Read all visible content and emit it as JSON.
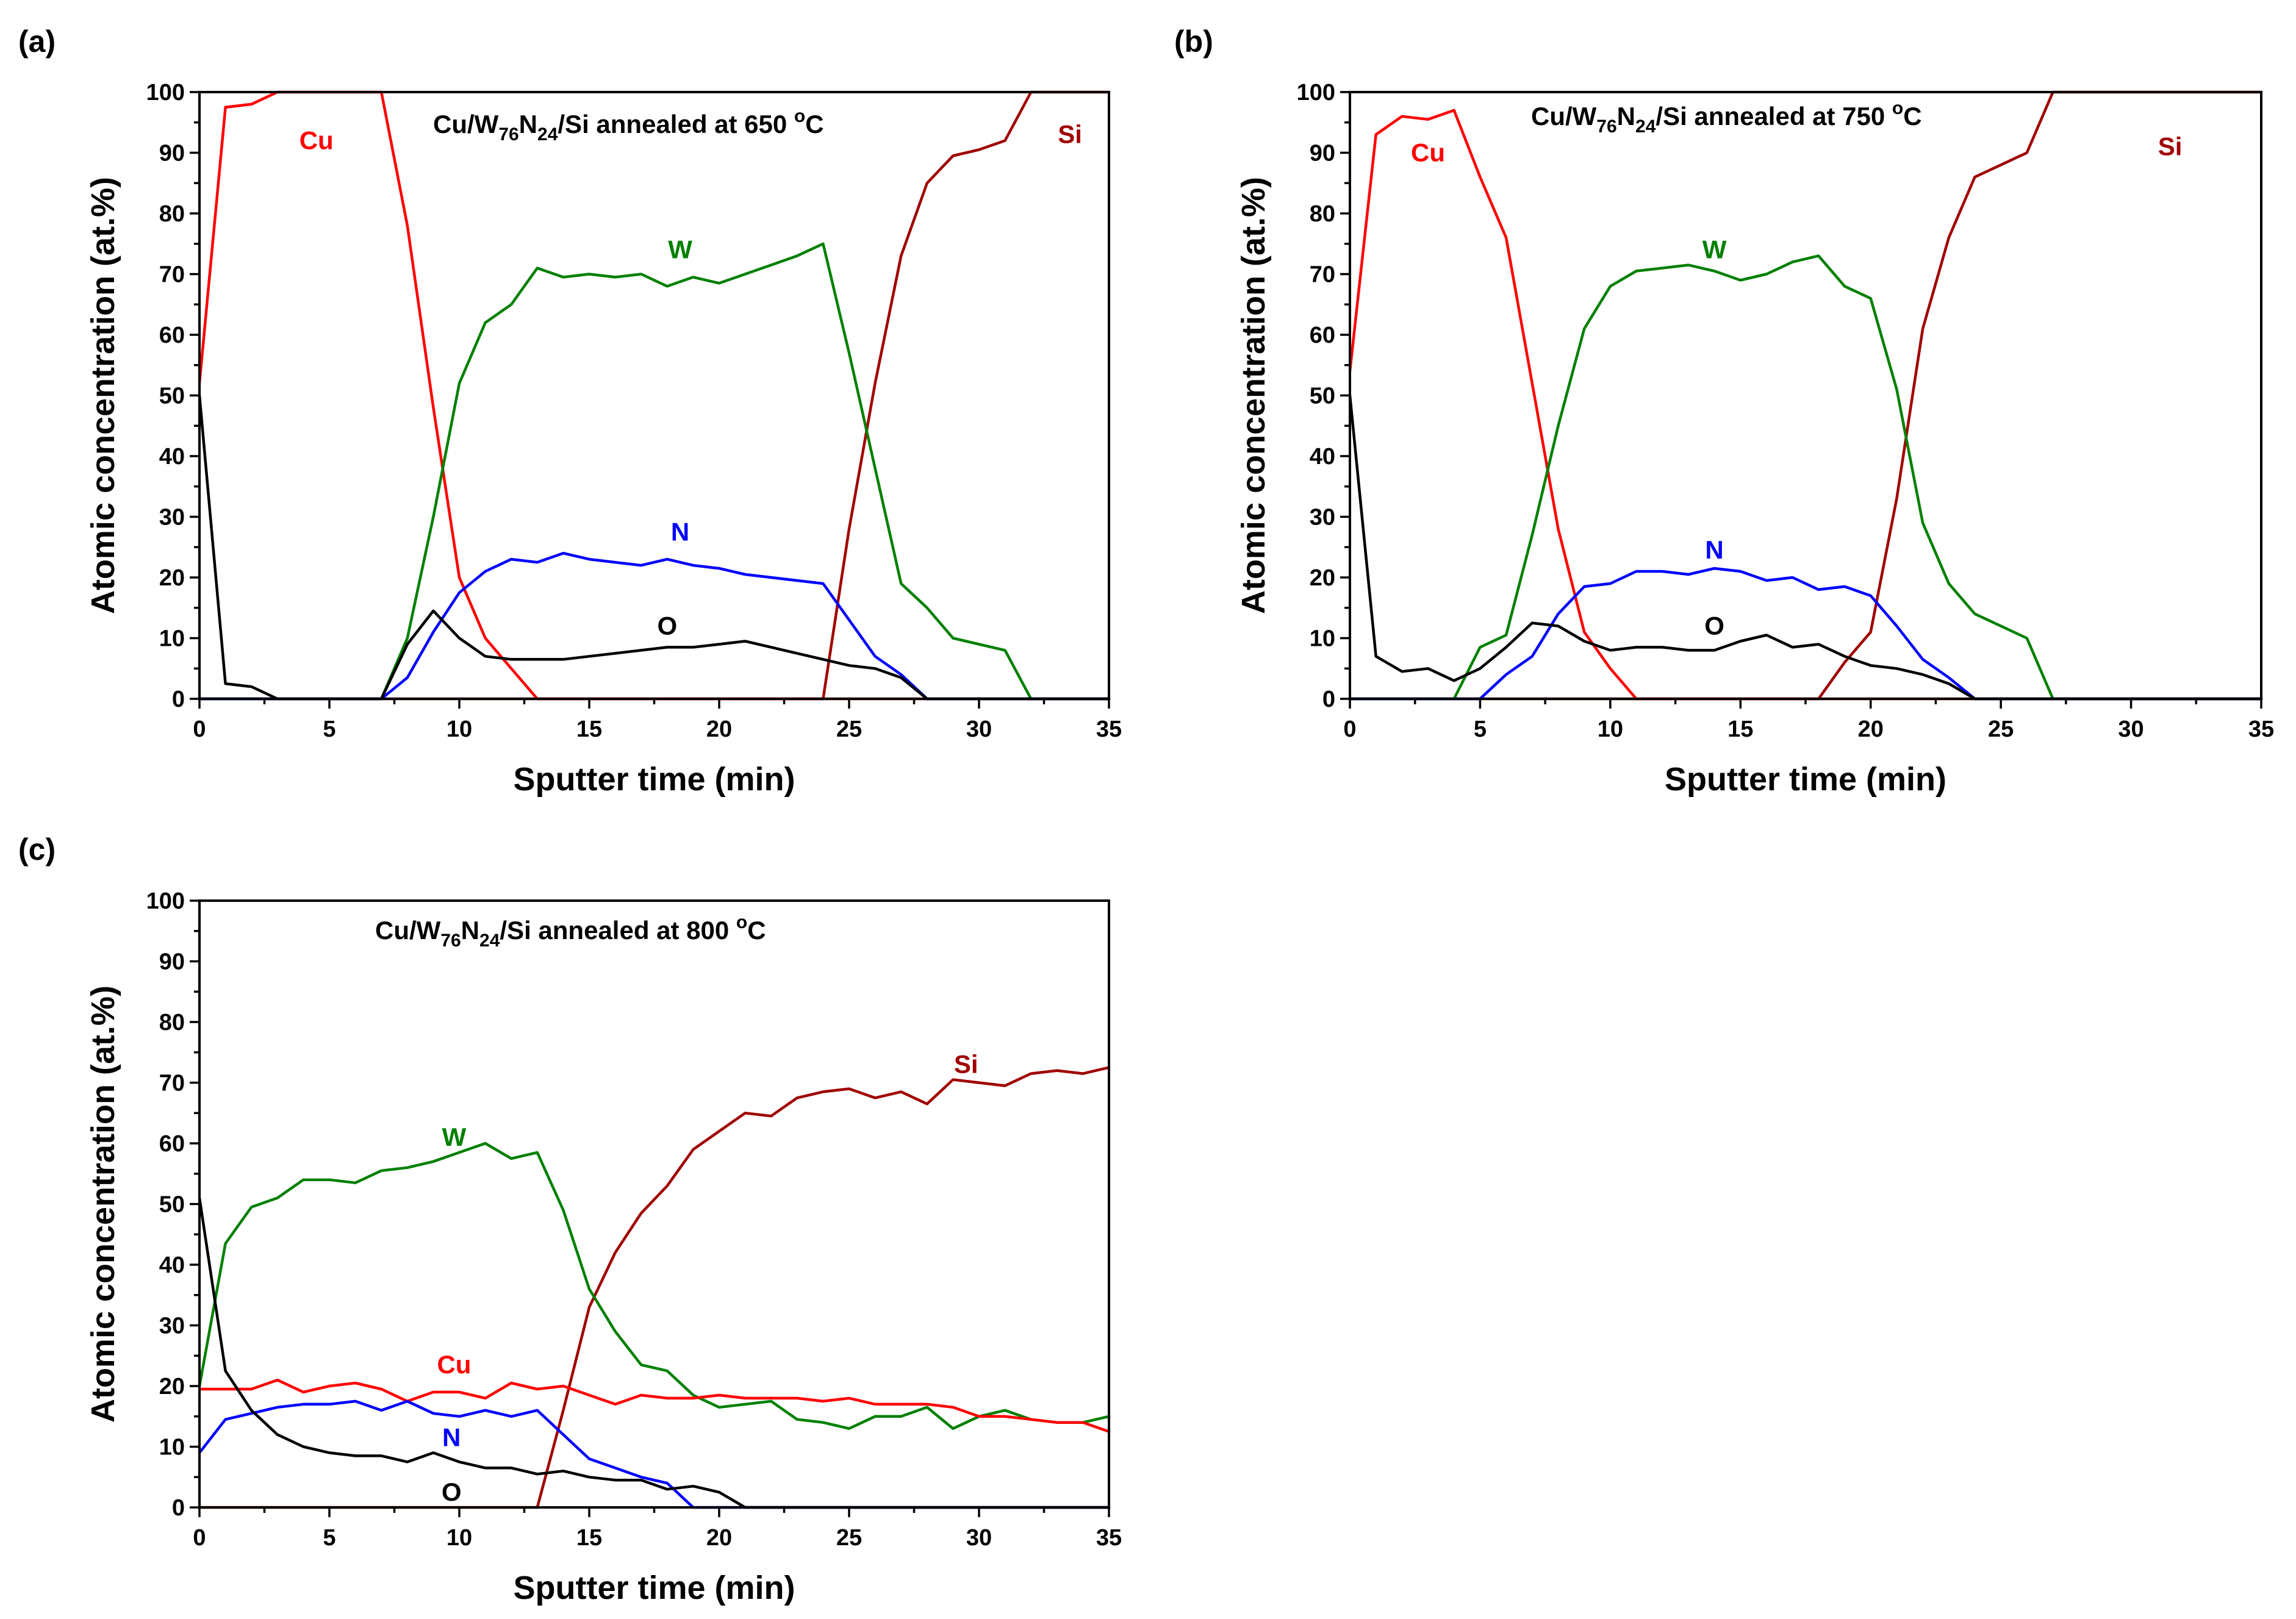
{
  "chart_data": [
    {
      "type": "line",
      "panel_label": "(a)",
      "title": {
        "prefix": "Cu/W",
        "sub1": "76",
        "mid": "N",
        "sub2": "24",
        "suffix": "/Si annealed at 650 ",
        "sup": "o",
        "unit": "C"
      },
      "xlabel": "Sputter time (min)",
      "ylabel": "Atomic concentration (at.%)",
      "xlim": [
        0,
        35
      ],
      "ylim": [
        0,
        100
      ],
      "xticks": [
        "0",
        "5",
        "10",
        "15",
        "20",
        "25",
        "30",
        "35"
      ],
      "yticks": [
        "0",
        "10",
        "20",
        "30",
        "40",
        "50",
        "60",
        "70",
        "80",
        "90",
        "100"
      ],
      "series": [
        {
          "name": "Cu",
          "color": "#ff0000",
          "label_at": [
            4.5,
            92
          ],
          "x": [
            0,
            1,
            2,
            3,
            4,
            5,
            6,
            7,
            8,
            9,
            10,
            11,
            12,
            13,
            14,
            35
          ],
          "y": [
            52,
            97.5,
            98,
            100,
            100,
            100,
            100,
            100,
            78,
            48,
            20,
            10,
            5,
            0,
            0,
            0
          ]
        },
        {
          "name": "Si",
          "color": "#a00000",
          "label_at": [
            33.5,
            93
          ],
          "x": [
            0,
            24,
            25,
            26,
            27,
            28,
            29,
            30,
            31,
            32,
            33,
            35
          ],
          "y": [
            0,
            0,
            28,
            52,
            73,
            85,
            89.5,
            90.5,
            92,
            100,
            100,
            100
          ]
        },
        {
          "name": "W",
          "color": "#008000",
          "label_at": [
            18.5,
            74
          ],
          "x": [
            0,
            7,
            8,
            9,
            10,
            11,
            12,
            13,
            14,
            15,
            16,
            17,
            18,
            19,
            20,
            21,
            22,
            23,
            24,
            25,
            26,
            27,
            28,
            29,
            30,
            31,
            32,
            35
          ],
          "y": [
            0,
            0,
            10,
            30,
            52,
            62,
            65,
            71,
            69.5,
            70,
            69.5,
            70,
            68,
            69.5,
            68.5,
            70,
            71.5,
            73,
            75,
            57,
            38,
            19,
            15,
            10,
            9,
            8,
            0,
            0
          ]
        },
        {
          "name": "N",
          "color": "#0000ff",
          "label_at": [
            18.5,
            27.5
          ],
          "x": [
            0,
            7,
            8,
            9,
            10,
            11,
            12,
            13,
            14,
            15,
            16,
            17,
            18,
            19,
            20,
            21,
            22,
            23,
            24,
            25,
            26,
            27,
            28,
            35
          ],
          "y": [
            0,
            0,
            3.5,
            11,
            17.5,
            21,
            23,
            22.5,
            24,
            23,
            22.5,
            22,
            23,
            22,
            21.5,
            20.5,
            20,
            19.5,
            19,
            13,
            7,
            4,
            0,
            0
          ]
        },
        {
          "name": "O",
          "color": "#000000",
          "label_at": [
            18,
            12
          ],
          "x": [
            0,
            1,
            2,
            3,
            4,
            5,
            6,
            7,
            8,
            9,
            10,
            11,
            12,
            13,
            14,
            15,
            16,
            17,
            18,
            19,
            20,
            21,
            22,
            23,
            24,
            25,
            26,
            27,
            28,
            35
          ],
          "y": [
            50,
            2.5,
            2,
            0,
            0,
            0,
            0,
            0,
            9,
            14.5,
            10,
            7,
            6.5,
            6.5,
            6.5,
            7,
            7.5,
            8,
            8.5,
            8.5,
            9,
            9.5,
            8.5,
            7.5,
            6.5,
            5.5,
            5,
            3.5,
            0,
            0
          ]
        }
      ]
    },
    {
      "type": "line",
      "panel_label": "(b)",
      "title": {
        "prefix": "Cu/W",
        "sub1": "76",
        "mid": "N",
        "sub2": "24",
        "suffix": "/Si annealed at 750 ",
        "sup": "o",
        "unit": "C"
      },
      "xlabel": "Sputter time (min)",
      "ylabel": "Atomic concentration (at.%)",
      "xlim": [
        0,
        35
      ],
      "ylim": [
        0,
        100
      ],
      "xticks": [
        "0",
        "5",
        "10",
        "15",
        "20",
        "25",
        "30",
        "35"
      ],
      "yticks": [
        "0",
        "10",
        "20",
        "30",
        "40",
        "50",
        "60",
        "70",
        "80",
        "90",
        "100"
      ],
      "series": [
        {
          "name": "Cu",
          "color": "#ff0000",
          "label_at": [
            3,
            90
          ],
          "x": [
            0,
            1,
            2,
            3,
            4,
            5,
            6,
            7,
            8,
            9,
            10,
            11,
            35
          ],
          "y": [
            54,
            93,
            96,
            95.5,
            97,
            86,
            76,
            52,
            28,
            11,
            5,
            0,
            0
          ]
        },
        {
          "name": "Si",
          "color": "#a00000",
          "label_at": [
            31.5,
            91
          ],
          "x": [
            0,
            18,
            19,
            20,
            21,
            22,
            23,
            24,
            25,
            26,
            27,
            28,
            35
          ],
          "y": [
            0,
            0,
            6,
            11,
            33,
            61,
            76,
            86,
            88,
            90,
            100,
            100,
            100
          ]
        },
        {
          "name": "W",
          "color": "#008000",
          "label_at": [
            14,
            74
          ],
          "x": [
            0,
            4,
            5,
            6,
            7,
            8,
            9,
            10,
            11,
            12,
            13,
            14,
            15,
            16,
            17,
            18,
            19,
            20,
            21,
            22,
            23,
            24,
            25,
            26,
            27,
            35
          ],
          "y": [
            0,
            0,
            8.5,
            10.5,
            27,
            45,
            61,
            68,
            70.5,
            71,
            71.5,
            70.5,
            69,
            70,
            72,
            73,
            68,
            66,
            51,
            29,
            19,
            14,
            12,
            10,
            0,
            0
          ]
        },
        {
          "name": "N",
          "color": "#0000ff",
          "label_at": [
            14,
            24.5
          ],
          "x": [
            0,
            5,
            6,
            7,
            8,
            9,
            10,
            11,
            12,
            13,
            14,
            15,
            16,
            17,
            18,
            19,
            20,
            21,
            22,
            23,
            24,
            35
          ],
          "y": [
            0,
            0,
            4,
            7,
            14,
            18.5,
            19,
            21,
            21,
            20.5,
            21.5,
            21,
            19.5,
            20,
            18,
            18.5,
            17,
            12,
            6.5,
            3.5,
            0,
            0
          ]
        },
        {
          "name": "O",
          "color": "#000000",
          "label_at": [
            14,
            12
          ],
          "x": [
            0,
            1,
            2,
            3,
            4,
            5,
            6,
            7,
            8,
            9,
            10,
            11,
            12,
            13,
            14,
            15,
            16,
            17,
            18,
            19,
            20,
            21,
            22,
            23,
            24,
            35
          ],
          "y": [
            50,
            7,
            4.5,
            5,
            3,
            5,
            8.5,
            12.5,
            12,
            9.5,
            8,
            8.5,
            8.5,
            8,
            8,
            9.5,
            10.5,
            8.5,
            9,
            7,
            5.5,
            5,
            4,
            2.5,
            0,
            0
          ]
        }
      ]
    },
    {
      "type": "line",
      "panel_label": "(c)",
      "title": {
        "prefix": "Cu/W",
        "sub1": "76",
        "mid": "N",
        "sub2": "24",
        "suffix": "/Si annealed at 800 ",
        "sup": "o",
        "unit": "C"
      },
      "xlabel": "Sputter time (min)",
      "ylabel": "Atomic concentration (at.%)",
      "xlim": [
        0,
        35
      ],
      "ylim": [
        0,
        100
      ],
      "xticks": [
        "0",
        "5",
        "10",
        "15",
        "20",
        "25",
        "30",
        "35"
      ],
      "yticks": [
        "0",
        "10",
        "20",
        "30",
        "40",
        "50",
        "60",
        "70",
        "80",
        "90",
        "100"
      ],
      "series": [
        {
          "name": "Si",
          "color": "#a00000",
          "label_at": [
            29.5,
            73
          ],
          "x": [
            0,
            13,
            14,
            15,
            16,
            17,
            18,
            19,
            20,
            21,
            22,
            23,
            24,
            25,
            26,
            27,
            28,
            29,
            30,
            31,
            32,
            33,
            34,
            35
          ],
          "y": [
            0,
            0,
            16,
            33,
            42,
            48.5,
            53,
            59,
            62,
            65,
            64.5,
            67.5,
            68.5,
            69,
            67.5,
            68.5,
            66.5,
            70.5,
            70,
            69.5,
            71.5,
            72,
            71.5,
            72.5
          ]
        },
        {
          "name": "W",
          "color": "#008000",
          "label_at": [
            9.8,
            61
          ],
          "x": [
            0,
            1,
            2,
            3,
            4,
            5,
            6,
            7,
            8,
            9,
            10,
            11,
            12,
            13,
            14,
            15,
            16,
            17,
            18,
            19,
            20,
            21,
            22,
            23,
            24,
            25,
            26,
            27,
            28,
            29,
            30,
            31,
            32,
            33,
            34,
            35
          ],
          "y": [
            20,
            43.5,
            49.5,
            51,
            54,
            54,
            53.5,
            55.5,
            56,
            57,
            58.5,
            60,
            57.5,
            58.5,
            49,
            36,
            29,
            23.5,
            22.5,
            18.5,
            16.5,
            17,
            17.5,
            14.5,
            14,
            13,
            15,
            15,
            16.5,
            13,
            15,
            16,
            14.5,
            14,
            14,
            15
          ]
        },
        {
          "name": "Cu",
          "color": "#ff0000",
          "label_at": [
            9.8,
            23.5
          ],
          "x": [
            0,
            1,
            2,
            3,
            4,
            5,
            6,
            7,
            8,
            9,
            10,
            11,
            12,
            13,
            14,
            15,
            16,
            17,
            18,
            19,
            20,
            21,
            22,
            23,
            24,
            25,
            26,
            27,
            28,
            29,
            30,
            31,
            32,
            33,
            34,
            35
          ],
          "y": [
            19.5,
            19.5,
            19.5,
            21,
            19,
            20,
            20.5,
            19.5,
            17.5,
            19,
            19,
            18,
            20.5,
            19.5,
            20,
            18.5,
            17,
            18.5,
            18,
            18,
            18.5,
            18,
            18,
            18,
            17.5,
            18,
            17,
            17,
            17,
            16.5,
            15,
            15,
            14.5,
            14,
            14,
            12.5
          ]
        },
        {
          "name": "N",
          "color": "#0000ff",
          "label_at": [
            9.7,
            11.5
          ],
          "x": [
            0,
            1,
            2,
            3,
            4,
            5,
            6,
            7,
            8,
            9,
            10,
            11,
            12,
            13,
            14,
            15,
            16,
            17,
            18,
            19,
            35
          ],
          "y": [
            9,
            14.5,
            15.5,
            16.5,
            17,
            17,
            17.5,
            16,
            17.5,
            15.5,
            15,
            16,
            15,
            16,
            12,
            8,
            6.5,
            5,
            4,
            0,
            0
          ]
        },
        {
          "name": "O",
          "color": "#000000",
          "label_at": [
            9.7,
            2.5
          ],
          "x": [
            0,
            1,
            2,
            3,
            4,
            5,
            6,
            7,
            8,
            9,
            10,
            11,
            12,
            13,
            14,
            15,
            16,
            17,
            18,
            19,
            20,
            21,
            35
          ],
          "y": [
            51,
            22.5,
            16,
            12,
            10,
            9,
            8.5,
            8.5,
            7.5,
            9,
            7.5,
            6.5,
            6.5,
            5.5,
            6,
            5,
            4.5,
            4.5,
            3,
            3.5,
            2.5,
            0,
            0
          ]
        }
      ]
    }
  ]
}
